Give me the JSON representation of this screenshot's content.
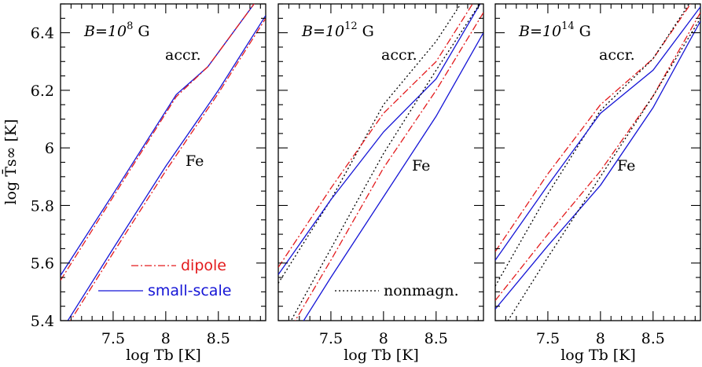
{
  "chart_data": {
    "type": "line",
    "colors": {
      "dipole": "#e31a1c",
      "small_scale": "#1515d6",
      "nonmagnetic": "#000000"
    },
    "ylabel": "log T̄s∞ [K]",
    "xlabel": "log Tb [K]",
    "ylim": [
      5.4,
      6.5
    ],
    "xlim": [
      7.0,
      8.95
    ],
    "xticks": [
      7.5,
      8,
      8.5
    ],
    "yticks": [
      5.4,
      5.6,
      5.8,
      6,
      6.2,
      6.4
    ],
    "panels": [
      {
        "b_prefix": "B=10",
        "b_exp": "8",
        "b_unit": " G",
        "labels": {
          "accr": "accr.",
          "fe": "Fe"
        },
        "series": [
          {
            "key": "accr_small",
            "style": "small_scale",
            "x": [
              7.0,
              7.5,
              8.1,
              8.4,
              8.95
            ],
            "y": [
              5.557,
              5.84,
              6.185,
              6.282,
              6.555
            ]
          },
          {
            "key": "accr_dipole",
            "style": "dipole",
            "x": [
              7.0,
              7.5,
              8.1,
              8.4,
              8.95
            ],
            "y": [
              5.54,
              5.83,
              6.178,
              6.282,
              6.555
            ]
          },
          {
            "key": "fe_small",
            "style": "small_scale",
            "x": [
              7.0,
              7.5,
              8.0,
              8.5,
              8.95
            ],
            "y": [
              5.36,
              5.65,
              5.936,
              6.2,
              6.46
            ]
          },
          {
            "key": "fe_dipole",
            "style": "dipole",
            "x": [
              7.0,
              7.5,
              8.0,
              8.5,
              8.95
            ],
            "y": [
              5.345,
              5.635,
              5.92,
              6.19,
              6.45
            ]
          }
        ],
        "legend": {
          "dipole": "dipole",
          "small_scale": "small-scale"
        }
      },
      {
        "b_prefix": "B=10",
        "b_exp": "12",
        "b_unit": " G",
        "labels": {
          "accr": "accr.",
          "fe": "Fe"
        },
        "series": [
          {
            "key": "accr_nonmag",
            "style": "nonmagnetic",
            "x": [
              7.0,
              7.5,
              8.0,
              8.5,
              8.95
            ],
            "y": [
              5.53,
              5.82,
              6.15,
              6.37,
              6.62
            ]
          },
          {
            "key": "accr_dipole",
            "style": "dipole",
            "x": [
              7.0,
              7.5,
              8.0,
              8.5,
              8.95
            ],
            "y": [
              5.585,
              5.86,
              6.12,
              6.3,
              6.56
            ]
          },
          {
            "key": "accr_small",
            "style": "small_scale",
            "x": [
              7.0,
              7.5,
              8.0,
              8.5,
              8.95
            ],
            "y": [
              5.56,
              5.82,
              6.055,
              6.24,
              6.52
            ]
          },
          {
            "key": "fe_nonmag",
            "style": "nonmagnetic",
            "x": [
              7.0,
              7.5,
              8.0,
              8.5,
              8.95
            ],
            "y": [
              5.32,
              5.65,
              5.98,
              6.27,
              6.52
            ]
          },
          {
            "key": "fe_dipole",
            "style": "dipole",
            "x": [
              7.0,
              7.5,
              8.0,
              8.5,
              8.95
            ],
            "y": [
              5.3,
              5.61,
              5.93,
              6.2,
              6.47
            ]
          },
          {
            "key": "fe_small",
            "style": "small_scale",
            "x": [
              7.0,
              7.5,
              8.0,
              8.5,
              8.95
            ],
            "y": [
              5.26,
              5.55,
              5.83,
              6.11,
              6.4
            ]
          }
        ],
        "legend": {
          "nonmagnetic": "nonmagn."
        }
      },
      {
        "b_prefix": "B=10",
        "b_exp": "14",
        "b_unit": " G",
        "labels": {
          "accr": "accr.",
          "fe": "Fe"
        },
        "series": [
          {
            "key": "accr_dipole",
            "style": "dipole",
            "x": [
              7.0,
              7.5,
              8.0,
              8.5,
              8.95
            ],
            "y": [
              5.64,
              5.91,
              6.15,
              6.31,
              6.55
            ]
          },
          {
            "key": "accr_nonmag",
            "style": "nonmagnetic",
            "x": [
              7.0,
              7.5,
              8.0,
              8.5,
              8.95
            ],
            "y": [
              5.52,
              5.84,
              6.13,
              6.31,
              6.56
            ]
          },
          {
            "key": "accr_small",
            "style": "small_scale",
            "x": [
              7.0,
              7.5,
              8.0,
              8.5,
              8.95
            ],
            "y": [
              5.61,
              5.87,
              6.12,
              6.27,
              6.49
            ]
          },
          {
            "key": "fe_dipole",
            "style": "dipole",
            "x": [
              7.0,
              7.5,
              8.0,
              8.5,
              8.95
            ],
            "y": [
              5.47,
              5.7,
              5.92,
              6.18,
              6.47
            ]
          },
          {
            "key": "fe_small",
            "style": "small_scale",
            "x": [
              7.0,
              7.5,
              8.0,
              8.5,
              8.95
            ],
            "y": [
              5.44,
              5.66,
              5.87,
              6.14,
              6.44
            ]
          },
          {
            "key": "fe_nonmag",
            "style": "nonmagnetic",
            "x": [
              7.0,
              7.5,
              8.0,
              8.5,
              8.95
            ],
            "y": [
              5.33,
              5.62,
              5.9,
              6.18,
              6.45
            ]
          }
        ]
      }
    ]
  }
}
